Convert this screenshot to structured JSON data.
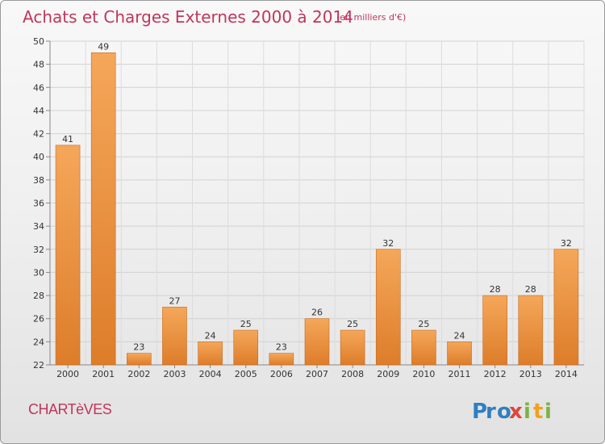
{
  "header": {
    "title": "Achats et Charges Externes 2000 à 2014",
    "subtitle": "(en milliers d'€)"
  },
  "commune": "CHARTèVES",
  "logo": {
    "text": "Proxiti",
    "letters": [
      "P",
      "r",
      "o",
      "x",
      "i",
      "t",
      "i"
    ],
    "colors": [
      "#2f7fc1",
      "#2f7fc1",
      "#2f7fc1",
      "#e0453a",
      "#7cb342",
      "#f2a01e",
      "#7cb342"
    ]
  },
  "colors": {
    "bar_top": "#f5a75a",
    "bar_bottom": "#dd7d2a",
    "bar_edge": "#c86a1c",
    "title": "#c0365c"
  },
  "chart_data": {
    "type": "bar",
    "categories": [
      "2000",
      "2001",
      "2002",
      "2003",
      "2004",
      "2005",
      "2006",
      "2007",
      "2008",
      "2009",
      "2010",
      "2011",
      "2012",
      "2013",
      "2014"
    ],
    "values": [
      41,
      49,
      23,
      27,
      24,
      25,
      23,
      26,
      25,
      32,
      25,
      24,
      28,
      28,
      32
    ],
    "ylim": [
      22,
      50
    ],
    "yticks": [
      22,
      24,
      26,
      28,
      30,
      32,
      34,
      36,
      38,
      40,
      42,
      44,
      46,
      48,
      50
    ],
    "grid": true,
    "title": "Achats et Charges Externes 2000 à 2014",
    "xlabel": "",
    "ylabel": ""
  }
}
